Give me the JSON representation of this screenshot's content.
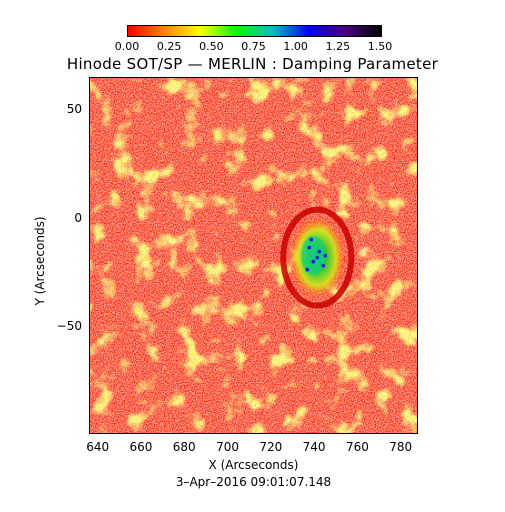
{
  "title": "Hinode SOT/SP — MERLIN : Damping Parameter",
  "date_label": "3–Apr–2016 09:01:07.148",
  "colorbar": {
    "ticks": [
      "0.00",
      "0.25",
      "0.50",
      "0.75",
      "1.00",
      "1.25",
      "1.50"
    ],
    "range": [
      0,
      1.5
    ],
    "colors": [
      "#ff0000",
      "#ff8000",
      "#ffff00",
      "#00ff00",
      "#00c0c0",
      "#0000ff",
      "#4b0082",
      "#000000"
    ]
  },
  "axes": {
    "xlabel": "X (Arcseconds)",
    "ylabel": "Y (Arcseconds)",
    "x_ticks": [
      "640",
      "660",
      "680",
      "700",
      "720",
      "740",
      "760",
      "780"
    ],
    "y_ticks": [
      "50",
      "0",
      "−50"
    ],
    "x_range": [
      636,
      788
    ],
    "y_range": [
      -100,
      65
    ]
  },
  "map": {
    "background_color": "#ff2a1a",
    "feature": "sunspot with penumbra, low damping ring and higher damping core",
    "sunspot_center": [
      741,
      -18
    ]
  }
}
